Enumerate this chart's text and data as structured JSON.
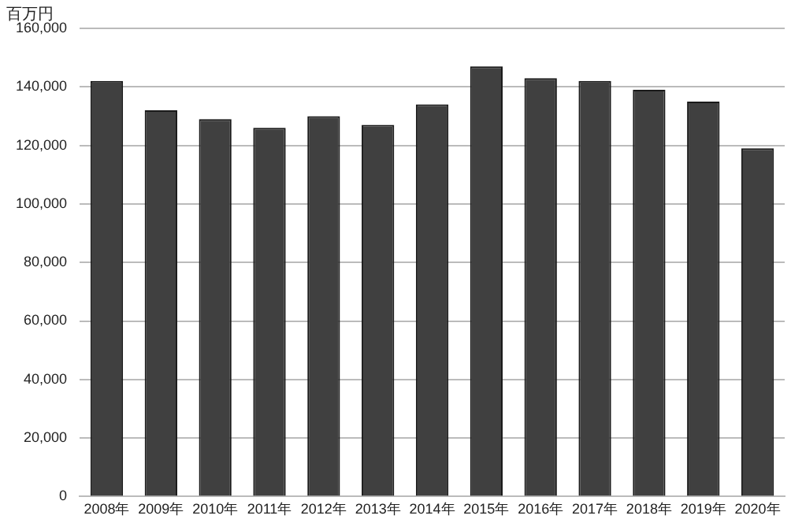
{
  "chart_data": {
    "type": "bar",
    "ylabel": "百万円",
    "categories": [
      "2008年",
      "2009年",
      "2010年",
      "2011年",
      "2012年",
      "2013年",
      "2014年",
      "2015年",
      "2016年",
      "2017年",
      "2018年",
      "2019年",
      "2020年"
    ],
    "values": [
      142000,
      132000,
      129000,
      126000,
      130000,
      127000,
      134000,
      147000,
      143000,
      142000,
      139000,
      135000,
      119000
    ],
    "color": "#404040",
    "ylim": [
      0,
      160000
    ],
    "yticks": [
      {
        "value": 0,
        "label": "0"
      },
      {
        "value": 20000,
        "label": "20,000"
      },
      {
        "value": 40000,
        "label": "40,000"
      },
      {
        "value": 60000,
        "label": "60,000"
      },
      {
        "value": 80000,
        "label": "80,000"
      },
      {
        "value": 100000,
        "label": "100,000"
      },
      {
        "value": 120000,
        "label": "120,000"
      },
      {
        "value": 140000,
        "label": "140,000"
      },
      {
        "value": 160000,
        "label": "160,000"
      }
    ],
    "grid": "y",
    "legend": false
  }
}
